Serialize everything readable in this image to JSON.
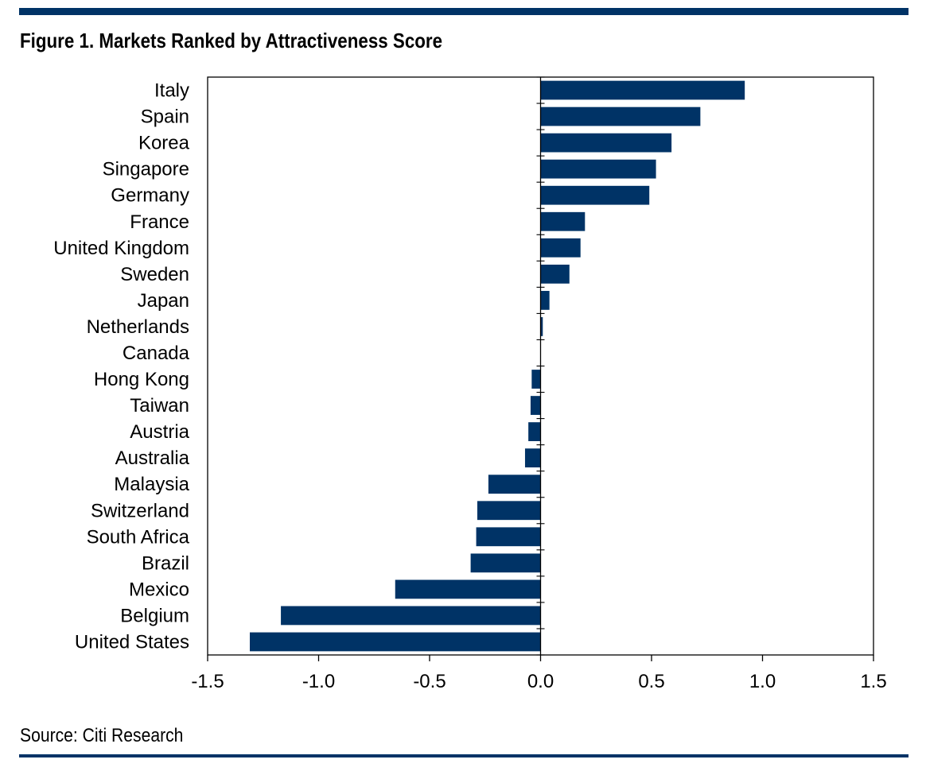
{
  "header": {
    "title": "Figure 1. Markets Ranked by Attractiveness Score"
  },
  "footer": {
    "source": "Source: Citi Research"
  },
  "colors": {
    "bar": "#003366",
    "rule": "#003366",
    "axis": "#000000"
  },
  "chart_data": {
    "type": "bar",
    "orientation": "horizontal",
    "title": "Figure 1. Markets Ranked by Attractiveness Score",
    "xlabel": "",
    "ylabel": "",
    "xlim": [
      -1.5,
      1.5
    ],
    "x_ticks": [
      -1.5,
      -1.0,
      -0.5,
      0.0,
      0.5,
      1.0,
      1.5
    ],
    "x_tick_labels": [
      "-1.5",
      "-1.0",
      "-0.5",
      "0.0",
      "0.5",
      "1.0",
      "1.5"
    ],
    "grid": false,
    "legend": "none",
    "categories": [
      "Italy",
      "Spain",
      "Korea",
      "Singapore",
      "Germany",
      "France",
      "United Kingdom",
      "Sweden",
      "Japan",
      "Netherlands",
      "Canada",
      "Hong Kong",
      "Taiwan",
      "Austria",
      "Australia",
      "Malaysia",
      "Switzerland",
      "South Africa",
      "Brazil",
      "Mexico",
      "Belgium",
      "United States"
    ],
    "values": [
      0.92,
      0.72,
      0.59,
      0.52,
      0.49,
      0.2,
      0.18,
      0.13,
      0.04,
      0.01,
      0.0,
      -0.04,
      -0.045,
      -0.055,
      -0.07,
      -0.235,
      -0.285,
      -0.29,
      -0.315,
      -0.655,
      -1.17,
      -1.31
    ]
  }
}
